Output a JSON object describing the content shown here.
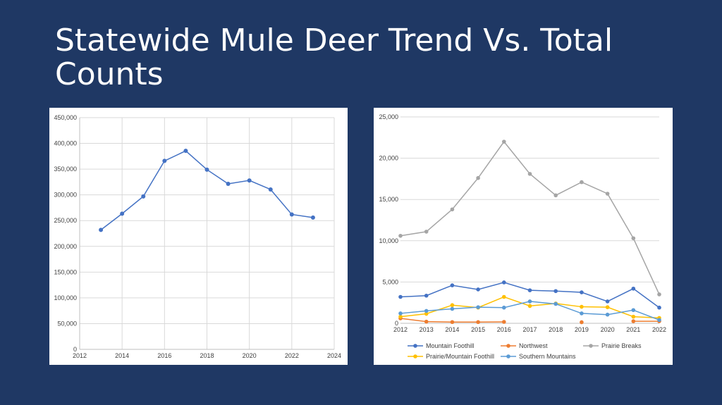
{
  "slide": {
    "title": "Statewide Mule Deer Trend Vs. Total Counts"
  },
  "chart_data": [
    {
      "type": "scatter",
      "x": [
        2013,
        2014,
        2015,
        2016,
        2017,
        2018,
        2019,
        2020,
        2021,
        2022,
        2023
      ],
      "series": [
        {
          "values": [
            232000,
            263500,
            297000,
            366000,
            385500,
            349000,
            321500,
            328000,
            310500,
            262000,
            256000
          ],
          "color": "#4472c4"
        }
      ],
      "xlim": [
        2012,
        2024
      ],
      "ylim": [
        0,
        450000
      ],
      "xticks": [
        2012,
        2014,
        2016,
        2018,
        2020,
        2022,
        2024
      ],
      "yticks": [
        0,
        50000,
        100000,
        150000,
        200000,
        250000,
        300000,
        350000,
        400000,
        450000
      ],
      "ytick_labels": [
        "0",
        "50,000",
        "100,000",
        "150,000",
        "200,000",
        "250,000",
        "300,000",
        "350,000",
        "400,000",
        "450,000"
      ],
      "grid": true,
      "legend": "none"
    },
    {
      "type": "line",
      "categories": [
        "2012",
        "2013",
        "2014",
        "2015",
        "2016",
        "2017",
        "2018",
        "2019",
        "2020",
        "2021",
        "2022"
      ],
      "series": [
        {
          "name": "Mountain Foothill",
          "color": "#4472c4",
          "values": [
            3200,
            3350,
            4600,
            4100,
            4950,
            4000,
            3900,
            3750,
            2650,
            4200,
            1900
          ]
        },
        {
          "name": "Northwest",
          "color": "#ed7d31",
          "values": [
            600,
            200,
            150,
            150,
            170,
            null,
            null,
            130,
            null,
            250,
            250
          ]
        },
        {
          "name": "Prairie Breaks",
          "color": "#a5a5a5",
          "values": [
            10600,
            11100,
            13800,
            17600,
            22000,
            18100,
            15500,
            17100,
            15700,
            10300,
            3500
          ]
        },
        {
          "name": "Prairie/Mountain Foothill",
          "color": "#ffc000",
          "values": [
            800,
            1150,
            2200,
            1900,
            3200,
            2100,
            2400,
            2000,
            1950,
            800,
            650
          ]
        },
        {
          "name": "Southern Mountains",
          "color": "#5b9bd5",
          "values": [
            1200,
            1500,
            1750,
            1950,
            1900,
            2650,
            2350,
            1200,
            1050,
            1600,
            400
          ]
        }
      ],
      "ylim": [
        0,
        25000
      ],
      "yticks": [
        0,
        5000,
        10000,
        15000,
        20000,
        25000
      ],
      "ytick_labels": [
        "0",
        "5,000",
        "10,000",
        "15,000",
        "20,000",
        "25,000"
      ],
      "grid": true,
      "legend": "bottom"
    }
  ]
}
